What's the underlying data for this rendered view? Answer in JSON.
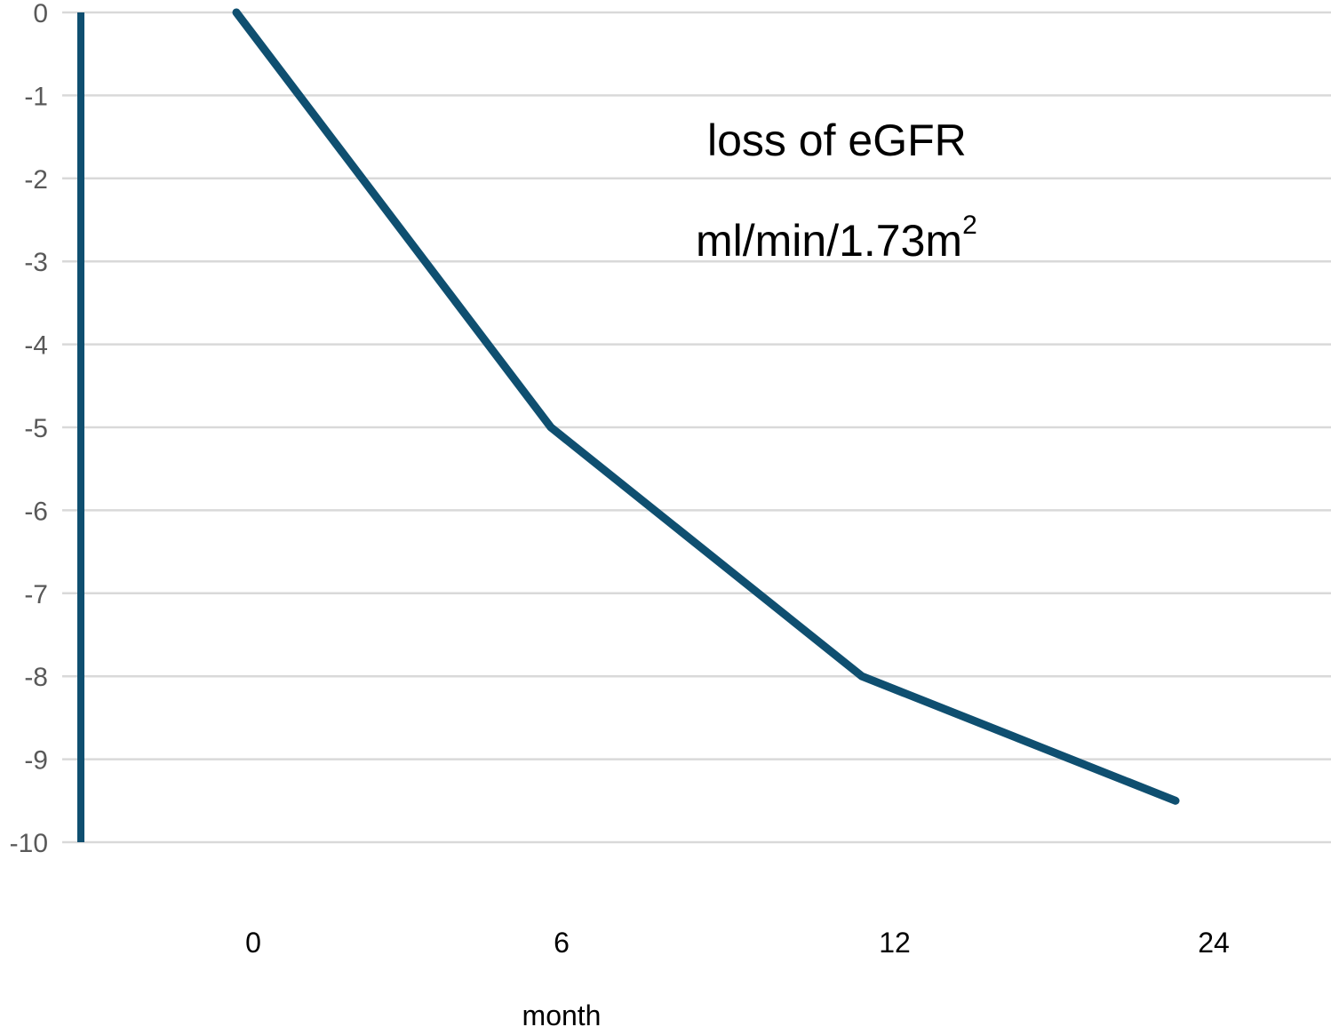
{
  "chart_data": {
    "type": "line",
    "categories": [
      "0",
      "6",
      "12",
      "24"
    ],
    "series": [
      {
        "values": [
          0,
          -5,
          -8,
          -9.5
        ],
        "color": "#0f4f70"
      }
    ],
    "xlabel": "month",
    "ylabel": "",
    "ylim": [
      -10,
      0
    ],
    "y_ticks": [
      "0",
      "-1",
      "-2",
      "-3",
      "-4",
      "-5",
      "-6",
      "-7",
      "-8",
      "-9",
      "-10"
    ],
    "grid": true,
    "legend": "none",
    "annotations": {
      "line1": "loss of eGFR",
      "line2_base": "ml/min/1.73m",
      "line2_sup": "2"
    },
    "colors": {
      "line": "#0f4f70",
      "axis": "#0f4f70",
      "grid": "#d9d9d9"
    }
  }
}
